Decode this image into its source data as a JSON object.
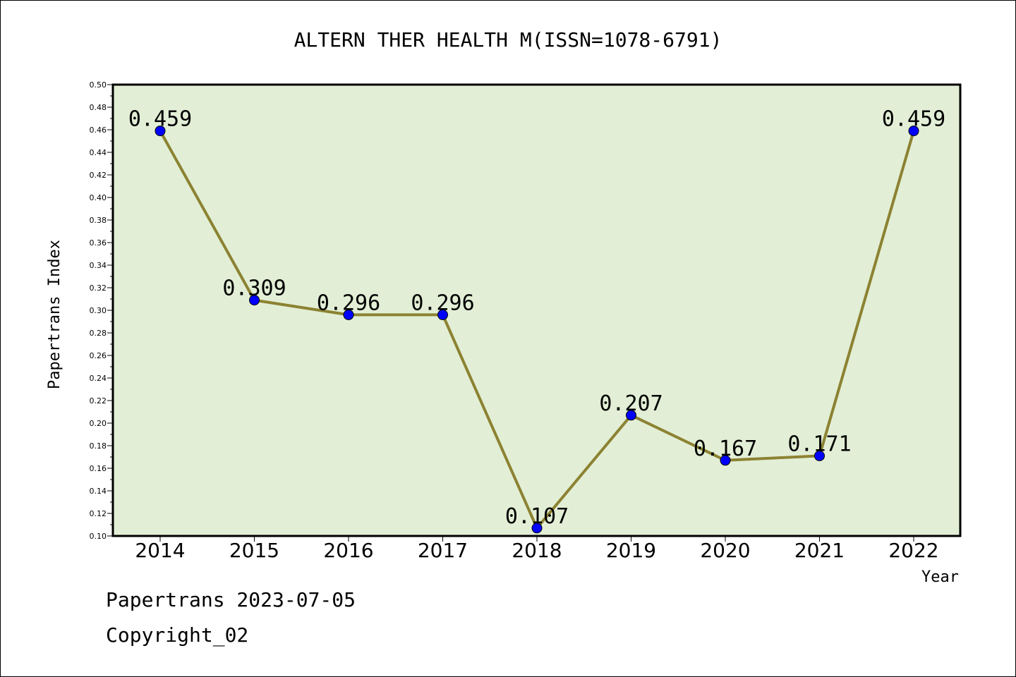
{
  "chart_data": {
    "type": "line",
    "title": "ALTERN THER HEALTH M(ISSN=1078-6791)",
    "xlabel": "Year",
    "ylabel": "Papertrans Index",
    "categories": [
      "2014",
      "2015",
      "2016",
      "2017",
      "2018",
      "2019",
      "2020",
      "2021",
      "2022"
    ],
    "series": [
      {
        "values": [
          0.459,
          0.309,
          0.296,
          0.296,
          0.107,
          0.207,
          0.167,
          0.171,
          0.459
        ],
        "labels": [
          "0.459",
          "0.309",
          "0.296",
          "0.296",
          "0.107",
          "0.207",
          "0.167",
          "0.171",
          "0.459"
        ]
      }
    ],
    "ylim": [
      0.1,
      0.5
    ],
    "yticks": [
      "0.10",
      "0.12",
      "0.14",
      "0.16",
      "0.18",
      "0.20",
      "0.22",
      "0.24",
      "0.26",
      "0.28",
      "0.30",
      "0.32",
      "0.34",
      "0.36",
      "0.38",
      "0.40",
      "0.42",
      "0.44",
      "0.46",
      "0.48",
      "0.50"
    ],
    "grid": false,
    "legend": "none",
    "colors": {
      "plot_background": "#e2efd6",
      "line": "#8c8232",
      "marker": "#0000ff"
    }
  },
  "footer": {
    "line1": "Papertrans 2023-07-05",
    "line2": "Copyright_02"
  }
}
